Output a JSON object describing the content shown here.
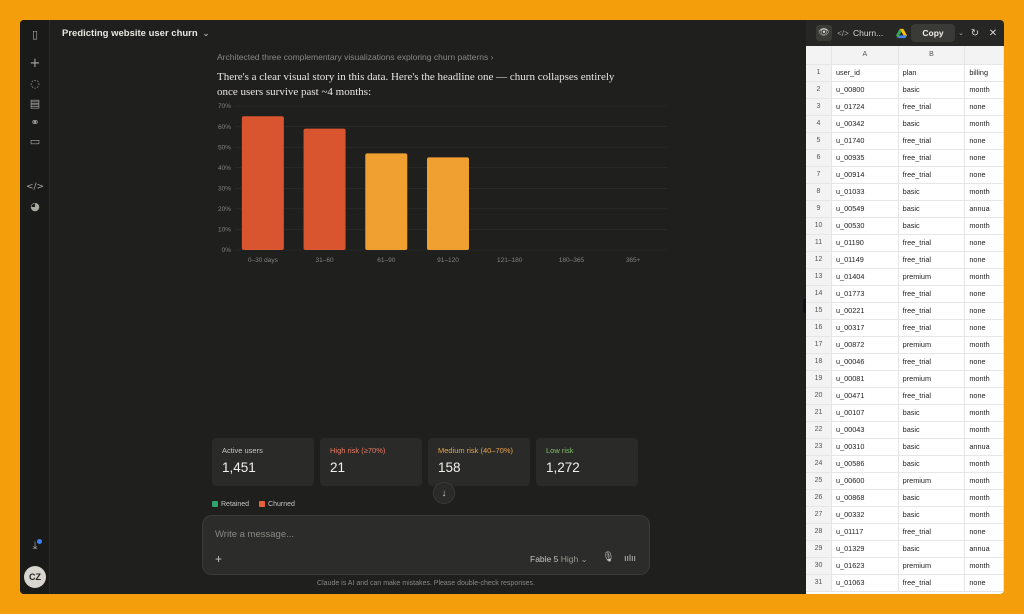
{
  "rail": {
    "icons": [
      "sidebar-toggle-icon",
      "new-chat-icon",
      "chats-icon",
      "projects-icon",
      "artifacts-icon",
      "briefcase-icon",
      "code-icon",
      "palette-icon",
      "download-icon"
    ],
    "avatar_initials": "CZ"
  },
  "header": {
    "title": "Predicting website user churn"
  },
  "message": {
    "thinking": "Architected three complementary visualizations exploring churn patterns",
    "text": "There's a clear visual story in this data. Here's the headline one — churn collapses entirely once users survive past ~4 months:"
  },
  "chart_data": {
    "type": "bar",
    "categories": [
      "0–30 days",
      "31–60",
      "61–90",
      "91–120",
      "121–180",
      "180–365",
      "365+"
    ],
    "values": [
      65,
      59,
      47,
      45,
      0,
      0,
      0
    ],
    "bar_colors": [
      "#D9552F",
      "#D9552F",
      "#F0A030",
      "#F0A030",
      "#F0A030",
      "#F0A030",
      "#F0A030"
    ],
    "y_ticks": [
      "0%",
      "10%",
      "20%",
      "30%",
      "40%",
      "50%",
      "60%",
      "70%"
    ],
    "ylim": [
      0,
      70
    ],
    "grid": true
  },
  "stats": [
    {
      "label": "Active users",
      "value": "1,451",
      "color": "#c7c5bf"
    },
    {
      "label": "High risk (≥70%)",
      "value": "21",
      "color": "#E87B63"
    },
    {
      "label": "Medium risk (40–70%)",
      "value": "158",
      "color": "#E8A24A"
    },
    {
      "label": "Low risk",
      "value": "1,272",
      "color": "#7FBF6A"
    }
  ],
  "legend": [
    {
      "label": "Retained",
      "color": "#2FA36B"
    },
    {
      "label": "Churned",
      "color": "#E8603C"
    }
  ],
  "composer": {
    "placeholder": "Write a message...",
    "model": "Fable 5",
    "effort": "High"
  },
  "disclaimer": "Claude is AI and can make mistakes. Please double-check responses.",
  "panel": {
    "file_name": "Churn...",
    "copy_label": "Copy",
    "columns": [
      "A",
      "B",
      ""
    ],
    "header_row": [
      "user_id",
      "plan",
      "billing"
    ],
    "rows": [
      [
        "u_00800",
        "basic",
        "month"
      ],
      [
        "u_01724",
        "free_trial",
        "none"
      ],
      [
        "u_00342",
        "basic",
        "month"
      ],
      [
        "u_01740",
        "free_trial",
        "none"
      ],
      [
        "u_00935",
        "free_trial",
        "none"
      ],
      [
        "u_00914",
        "free_trial",
        "none"
      ],
      [
        "u_01033",
        "basic",
        "month"
      ],
      [
        "u_00549",
        "basic",
        "annua"
      ],
      [
        "u_00530",
        "basic",
        "month"
      ],
      [
        "u_01190",
        "free_trial",
        "none"
      ],
      [
        "u_01149",
        "free_trial",
        "none"
      ],
      [
        "u_01404",
        "premium",
        "month"
      ],
      [
        "u_01773",
        "free_trial",
        "none"
      ],
      [
        "u_00221",
        "free_trial",
        "none"
      ],
      [
        "u_00317",
        "free_trial",
        "none"
      ],
      [
        "u_00872",
        "premium",
        "month"
      ],
      [
        "u_00046",
        "free_trial",
        "none"
      ],
      [
        "u_00081",
        "premium",
        "month"
      ],
      [
        "u_00471",
        "free_trial",
        "none"
      ],
      [
        "u_00107",
        "basic",
        "month"
      ],
      [
        "u_00043",
        "basic",
        "month"
      ],
      [
        "u_00310",
        "basic",
        "annua"
      ],
      [
        "u_00586",
        "basic",
        "month"
      ],
      [
        "u_00600",
        "premium",
        "month"
      ],
      [
        "u_00868",
        "basic",
        "month"
      ],
      [
        "u_00332",
        "basic",
        "month"
      ],
      [
        "u_01117",
        "free_trial",
        "none"
      ],
      [
        "u_01329",
        "basic",
        "annua"
      ],
      [
        "u_01623",
        "premium",
        "month"
      ],
      [
        "u_01063",
        "free_trial",
        "none"
      ]
    ]
  }
}
